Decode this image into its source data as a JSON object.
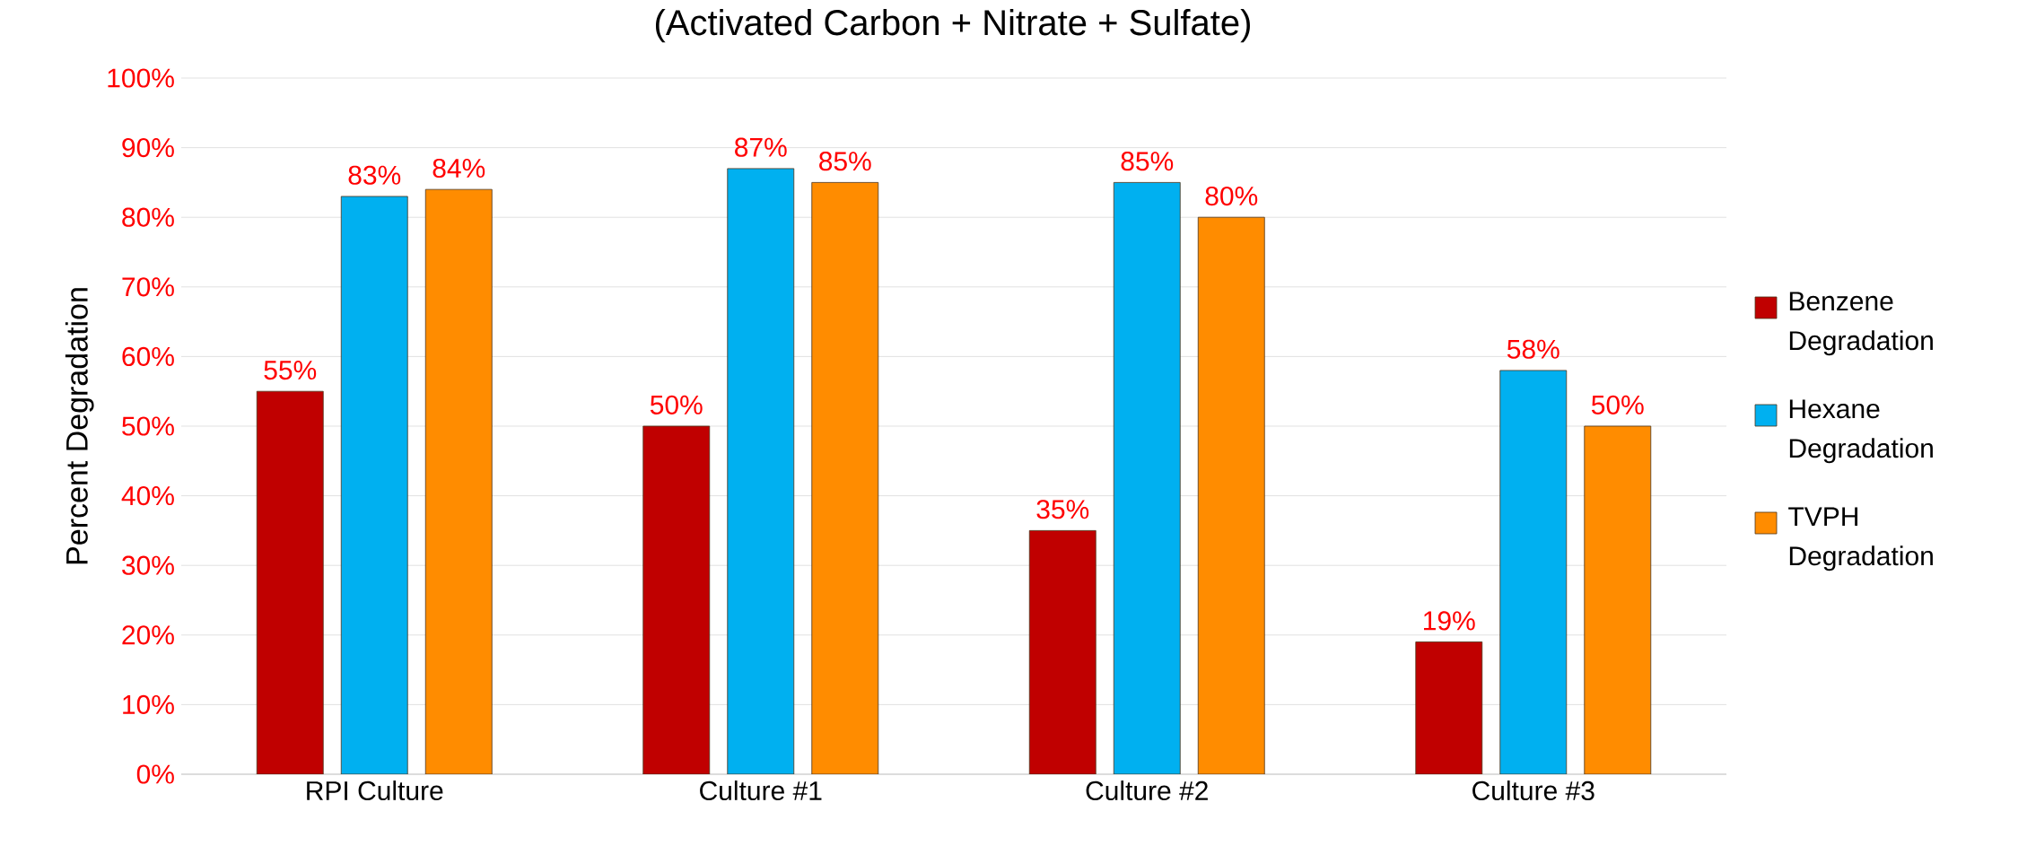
{
  "chart_data": {
    "type": "bar",
    "title": "(Activated Carbon + Nitrate + Sulfate)",
    "ylabel": "Percent Degradation",
    "categories": [
      "RPI Culture",
      "Culture #1",
      "Culture #2",
      "Culture #3"
    ],
    "series": [
      {
        "name": "Benzene Degradation",
        "color": "#c00000",
        "values": [
          55,
          50,
          35,
          19
        ],
        "value_labels": [
          "55%",
          "50%",
          "35%",
          "19%"
        ]
      },
      {
        "name": "Hexane Degradation",
        "color": "#00b0f0",
        "values": [
          83,
          87,
          85,
          58
        ],
        "value_labels": [
          "83%",
          "87%",
          "85%",
          "58%"
        ]
      },
      {
        "name": "TVPH Degradation",
        "color": "#ff8c00",
        "values": [
          84,
          85,
          80,
          50
        ],
        "value_labels": [
          "84%",
          "85%",
          "80%",
          "50%"
        ]
      }
    ],
    "ylim": [
      0,
      100
    ],
    "yticks": [
      {
        "value": 0,
        "label": "0%"
      },
      {
        "value": 10,
        "label": "10%"
      },
      {
        "value": 20,
        "label": "20%"
      },
      {
        "value": 30,
        "label": "30%"
      },
      {
        "value": 40,
        "label": "40%"
      },
      {
        "value": 50,
        "label": "50%"
      },
      {
        "value": 60,
        "label": "60%"
      },
      {
        "value": 70,
        "label": "70%"
      },
      {
        "value": 80,
        "label": "80%"
      },
      {
        "value": 90,
        "label": "90%"
      },
      {
        "value": 100,
        "label": "100%"
      }
    ],
    "grid": "y",
    "legend": "right"
  }
}
